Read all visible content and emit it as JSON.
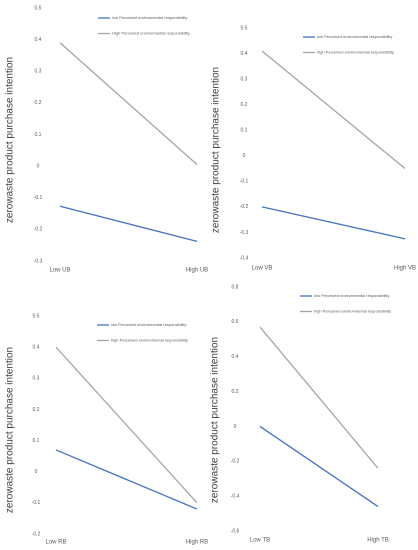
{
  "chart_data": [
    {
      "type": "line",
      "ylabel": "zerowaste product purchase intention",
      "categories": [
        "Low UB",
        "High UB"
      ],
      "series": [
        {
          "name": "low Perceived environmental responsibility",
          "color": "#4472c4",
          "values": [
            -0.127,
            -0.238
          ]
        },
        {
          "name": "High Perceived environmental responsibility",
          "color": "#a5a5a5",
          "values": [
            0.39,
            0.005
          ]
        }
      ],
      "ylim": [
        -0.3,
        0.5
      ],
      "yticks": [
        0.5,
        0.4,
        0.3,
        0.2,
        0.1,
        0,
        -0.1,
        -0.2,
        -0.3
      ]
    },
    {
      "type": "line",
      "ylabel": "zerowaste product purchase intention",
      "categories": [
        "Low VB",
        "High VB"
      ],
      "series": [
        {
          "name": "low Perceived environmental responsibility",
          "color": "#4472c4",
          "values": [
            -0.2,
            -0.325
          ]
        },
        {
          "name": "high Perceived environmental responsibility",
          "color": "#a5a5a5",
          "values": [
            0.41,
            -0.05
          ]
        }
      ],
      "ylim": [
        -0.4,
        0.5
      ],
      "yticks": [
        0.5,
        0.4,
        0.3,
        0.2,
        0.1,
        0,
        -0.1,
        -0.2,
        -0.3,
        -0.4
      ]
    },
    {
      "type": "line",
      "ylabel": "zerowaste product purchase intention",
      "categories": [
        "Low RB",
        "High RB"
      ],
      "series": [
        {
          "name": "low Perceived environmental responsibility",
          "color": "#4472c4",
          "values": [
            0.07,
            -0.12
          ]
        },
        {
          "name": "high Perceived environmental responsibility",
          "color": "#a5a5a5",
          "values": [
            0.4,
            -0.1
          ]
        }
      ],
      "ylim": [
        -0.2,
        0.5
      ],
      "yticks": [
        0.5,
        0.4,
        0.3,
        0.2,
        0.1,
        0,
        -0.1,
        -0.2
      ]
    },
    {
      "type": "line",
      "ylabel": "zerowaste product purchase intention",
      "categories": [
        "Low TB",
        "High TB"
      ],
      "series": [
        {
          "name": "low Perceived environmental responsibility",
          "color": "#4472c4",
          "values": [
            0,
            -0.46
          ]
        },
        {
          "name": "high Perceived environmental responsibility",
          "color": "#a5a5a5",
          "values": [
            0.57,
            -0.24
          ]
        }
      ],
      "ylim": [
        -0.6,
        0.8
      ],
      "yticks": [
        0.8,
        0.6,
        0.4,
        0.2,
        0,
        -0.2,
        -0.4,
        -0.6
      ]
    }
  ]
}
